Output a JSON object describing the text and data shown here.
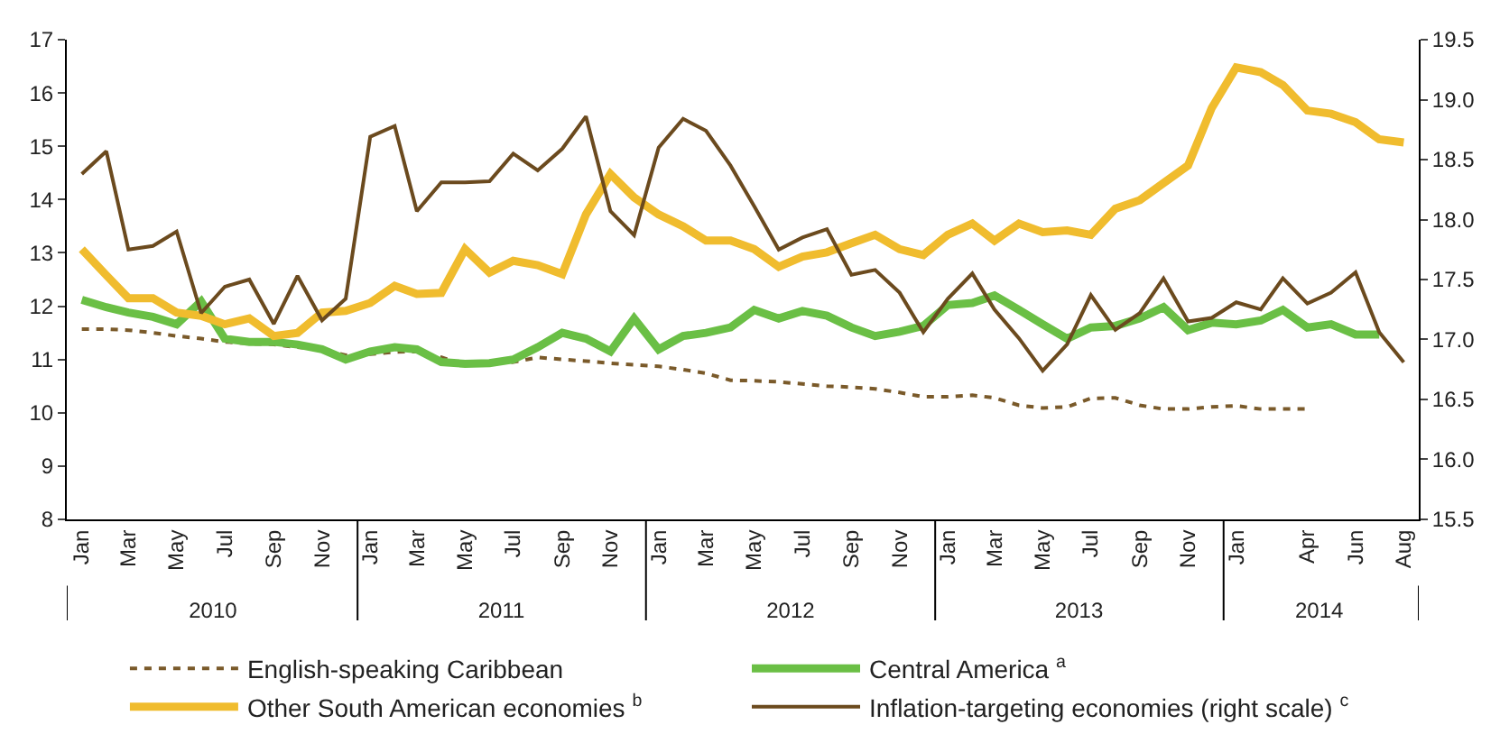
{
  "chart_data": {
    "type": "line",
    "x": [
      "2010-01",
      "2010-02",
      "2010-03",
      "2010-04",
      "2010-05",
      "2010-06",
      "2010-07",
      "2010-08",
      "2010-09",
      "2010-10",
      "2010-11",
      "2010-12",
      "2011-01",
      "2011-02",
      "2011-03",
      "2011-04",
      "2011-05",
      "2011-06",
      "2011-07",
      "2011-08",
      "2011-09",
      "2011-10",
      "2011-11",
      "2011-12",
      "2012-01",
      "2012-02",
      "2012-03",
      "2012-04",
      "2012-05",
      "2012-06",
      "2012-07",
      "2012-08",
      "2012-09",
      "2012-10",
      "2012-11",
      "2012-12",
      "2013-01",
      "2013-02",
      "2013-03",
      "2013-04",
      "2013-05",
      "2013-06",
      "2013-07",
      "2013-08",
      "2013-09",
      "2013-10",
      "2013-11",
      "2013-12",
      "2014-01",
      "2014-02",
      "2014-03",
      "2014-04",
      "2014-05",
      "2014-06",
      "2014-07",
      "2014-08"
    ],
    "series": [
      {
        "name": "English-speaking Caribbean",
        "color": "#7a5a2a",
        "line_style": "dashed",
        "values": [
          11.57,
          11.57,
          11.55,
          11.5,
          11.44,
          11.39,
          11.33,
          11.3,
          11.28,
          11.23,
          11.19,
          11.08,
          11.1,
          11.14,
          11.15,
          11.04,
          10.9,
          10.93,
          10.95,
          11.04,
          11.0,
          10.97,
          10.93,
          10.9,
          10.87,
          10.81,
          10.74,
          10.61,
          10.6,
          10.58,
          10.54,
          10.5,
          10.48,
          10.45,
          10.38,
          10.3,
          10.3,
          10.33,
          10.28,
          10.14,
          10.09,
          10.11,
          10.27,
          10.28,
          10.14,
          10.07,
          10.07,
          10.11,
          10.13,
          10.07,
          10.07,
          10.07,
          null,
          null,
          null,
          null
        ]
      },
      {
        "name": "Central America $^{a}$",
        "color": "#6abf45",
        "line_style": "solid",
        "values": [
          12.12,
          11.98,
          11.88,
          11.8,
          11.66,
          12.09,
          11.39,
          11.33,
          11.33,
          11.28,
          11.19,
          11.0,
          11.15,
          11.23,
          11.19,
          10.95,
          10.92,
          10.93,
          11.0,
          11.23,
          11.5,
          11.39,
          11.15,
          11.77,
          11.19,
          11.44,
          11.5,
          11.6,
          11.93,
          11.77,
          11.91,
          11.82,
          11.6,
          11.44,
          11.52,
          11.63,
          12.02,
          12.06,
          12.2,
          11.93,
          11.66,
          11.39,
          11.6,
          11.63,
          11.77,
          11.98,
          11.55,
          11.69,
          11.66,
          11.73,
          11.93,
          11.6,
          11.66,
          11.47,
          11.47,
          null
        ]
      },
      {
        "name": "Other South American economies $^{b}$",
        "color": "#f0bc2e",
        "line_style": "solid",
        "values": [
          13.07,
          12.58,
          12.15,
          12.15,
          11.88,
          11.82,
          11.66,
          11.77,
          11.44,
          11.5,
          11.88,
          11.91,
          12.06,
          12.38,
          12.23,
          12.25,
          13.07,
          12.63,
          12.85,
          12.77,
          12.6,
          13.72,
          14.48,
          14.04,
          13.72,
          13.5,
          13.23,
          13.23,
          13.07,
          12.74,
          12.93,
          13.01,
          13.18,
          13.34,
          13.07,
          12.96,
          13.34,
          13.55,
          13.23,
          13.55,
          13.39,
          13.42,
          13.34,
          13.83,
          13.99,
          14.31,
          14.64,
          15.72,
          16.48,
          16.39,
          16.15,
          15.67,
          15.61,
          15.45,
          15.13,
          15.07
        ]
      },
      {
        "name": "Inflation-targeting economies (right scale) $^{c}$",
        "color": "#6b4a1e",
        "line_style": "solid",
        "axis": "y2",
        "values": [
          18.38,
          18.57,
          17.75,
          17.78,
          17.9,
          17.22,
          17.44,
          17.5,
          17.13,
          17.53,
          17.16,
          17.34,
          18.69,
          18.78,
          18.07,
          18.31,
          18.31,
          18.32,
          18.55,
          18.41,
          18.59,
          18.86,
          18.07,
          17.87,
          18.6,
          18.84,
          18.74,
          18.45,
          18.11,
          17.75,
          17.85,
          17.92,
          17.54,
          17.58,
          17.39,
          17.06,
          17.34,
          17.55,
          17.25,
          17.01,
          16.74,
          16.96,
          17.37,
          17.08,
          17.22,
          17.51,
          17.15,
          17.18,
          17.31,
          17.25,
          17.51,
          17.3,
          17.39,
          17.56,
          17.06,
          16.81
        ]
      }
    ],
    "xlim": [
      "2009-12-13",
      "2014-08-20"
    ],
    "xticks": [
      {
        "value": "2010-01-01",
        "label": "Jan"
      },
      {
        "value": "2010-03-01",
        "label": "Mar"
      },
      {
        "value": "2010-05-01",
        "label": "May"
      },
      {
        "value": "2010-07-01",
        "label": "Jul"
      },
      {
        "value": "2010-09-01",
        "label": "Sep"
      },
      {
        "value": "2010-11-01",
        "label": "Nov"
      },
      {
        "value": "2011-01-01",
        "label": "Jan"
      },
      {
        "value": "2011-03-01",
        "label": "Mar"
      },
      {
        "value": "2011-05-01",
        "label": "May"
      },
      {
        "value": "2011-07-01",
        "label": "Jul"
      },
      {
        "value": "2011-09-01",
        "label": "Sep"
      },
      {
        "value": "2011-11-01",
        "label": "Nov"
      },
      {
        "value": "2012-01-01",
        "label": "Jan"
      },
      {
        "value": "2012-03-01",
        "label": "Mar"
      },
      {
        "value": "2012-05-01",
        "label": "May"
      },
      {
        "value": "2012-07-01",
        "label": "Jul"
      },
      {
        "value": "2012-09-01",
        "label": "Sep"
      },
      {
        "value": "2012-11-01",
        "label": "Nov"
      },
      {
        "value": "2013-01-01",
        "label": "Jan"
      },
      {
        "value": "2013-03-01",
        "label": "Mar"
      },
      {
        "value": "2013-05-01",
        "label": "May"
      },
      {
        "value": "2013-07-01",
        "label": "Jul"
      },
      {
        "value": "2013-09-01",
        "label": "Sep"
      },
      {
        "value": "2013-11-01",
        "label": "Nov"
      },
      {
        "value": "2014-01-01",
        "label": "Jan"
      },
      {
        "value": "2014-04-01",
        "label": "Apr"
      },
      {
        "value": "2014-06-01",
        "label": "Jun"
      },
      {
        "value": "2014-08-01",
        "label": "Aug"
      }
    ],
    "x2lim": [
      "2009-12-13",
      "2014-08-20"
    ],
    "x2ticks": [
      {
        "value": "2010-06-16",
        "label": "2010"
      },
      {
        "value": "2011-06-16",
        "label": "2011"
      },
      {
        "value": "2012-06-16",
        "label": "2012"
      },
      {
        "value": "2013-06-16",
        "label": "2013"
      },
      {
        "value": "2014-04-16",
        "label": "2014"
      }
    ],
    "ylim": [
      8,
      17
    ],
    "yticks": [
      8,
      9,
      10,
      11,
      12,
      13,
      14,
      15,
      16,
      17
    ],
    "y2lim": [
      15.5,
      19.5
    ],
    "y2ticks": [
      15.5,
      {
        "value": 16,
        "label": "16.0"
      },
      16.5,
      {
        "value": 17,
        "label": "17.0"
      },
      17.5,
      {
        "value": 18,
        "label": "18.0"
      },
      18.5,
      {
        "value": 19,
        "label": "19.0"
      },
      19.5
    ],
    "legend": "bottom",
    "marker": "none"
  }
}
